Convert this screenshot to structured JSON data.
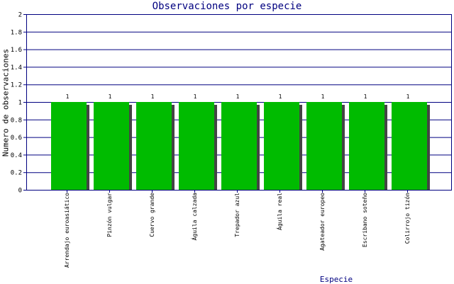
{
  "chart_data": {
    "type": "bar",
    "title": "Observaciones por especie",
    "xlabel": "Especie",
    "ylabel": "Numero de observaciones",
    "ylim": [
      0,
      2
    ],
    "yticks": [
      "0",
      "0.2",
      "0.4",
      "0.6",
      "0.8",
      "1",
      "1.2",
      "1.4",
      "1.6",
      "1.8",
      "2"
    ],
    "grid": true,
    "categories": [
      "Arrendajo euroasiático",
      "Pinzón vulgar",
      "Cuervo grande",
      "Águila calzada",
      "Trepador azul",
      "Águila real",
      "Agateador europeo",
      "Escribano soteño",
      "Colirrojo tizón"
    ],
    "values": [
      1,
      1,
      1,
      1,
      1,
      1,
      1,
      1,
      1
    ],
    "data_labels": [
      "1",
      "1",
      "1",
      "1",
      "1",
      "1",
      "1",
      "1",
      "1"
    ],
    "colors": {
      "bar": "#00bb00",
      "shadow": "#444444",
      "frame": "#000080",
      "title": "#000080"
    }
  }
}
